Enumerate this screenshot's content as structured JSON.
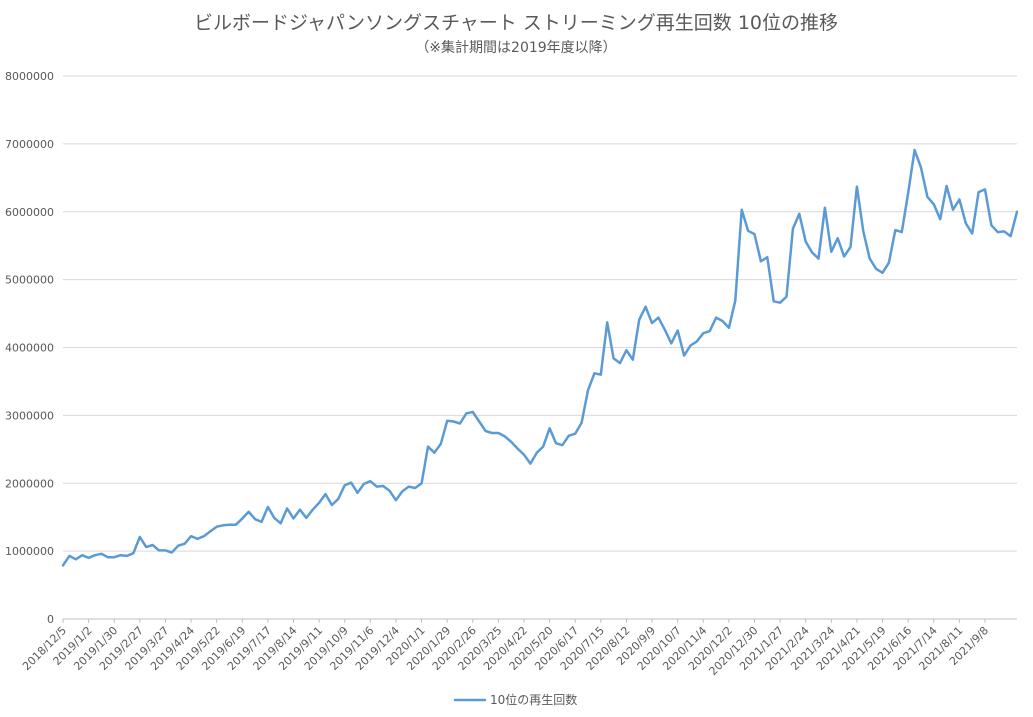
{
  "chart_data": {
    "type": "line",
    "title": "ビルボードジャパンソングスチャート ストリーミング再生回数 10位の推移",
    "subtitle": "（※集計期間は2019年度以降）",
    "xlabel": "",
    "ylabel": "",
    "ylim": [
      0,
      8000000
    ],
    "yticks": [
      "0",
      "1000000",
      "2000000",
      "3000000",
      "4000000",
      "5000000",
      "6000000",
      "7000000",
      "8000000"
    ],
    "grid": true,
    "legend_position": "bottom",
    "series_color": "#5b9bd5",
    "x_tick_labels": [
      "2018/12/5",
      "2019/1/2",
      "2019/1/30",
      "2019/2/27",
      "2019/3/27",
      "2019/4/24",
      "2019/5/22",
      "2019/6/19",
      "2019/7/17",
      "2019/8/14",
      "2019/9/11",
      "2019/10/9",
      "2019/11/6",
      "2019/12/4",
      "2020/1/1",
      "2020/1/29",
      "2020/2/26",
      "2020/3/25",
      "2020/4/22",
      "2020/5/20",
      "2020/6/17",
      "2020/7/15",
      "2020/8/12",
      "2020/9/9",
      "2020/10/7",
      "2020/11/4",
      "2020/12/2",
      "2020/12/30",
      "2021/1/27",
      "2021/2/24",
      "2021/3/24",
      "2021/4/21",
      "2021/5/19",
      "2021/6/16",
      "2021/7/14",
      "2021/8/11",
      "2021/9/8"
    ],
    "series": [
      {
        "name": "10位の再生回数",
        "values": [
          790000,
          930000,
          880000,
          940000,
          900000,
          940000,
          960000,
          910000,
          910000,
          940000,
          930000,
          970000,
          1210000,
          1060000,
          1090000,
          1010000,
          1010000,
          980000,
          1080000,
          1110000,
          1220000,
          1180000,
          1220000,
          1290000,
          1360000,
          1380000,
          1390000,
          1390000,
          1480000,
          1580000,
          1470000,
          1430000,
          1650000,
          1490000,
          1410000,
          1630000,
          1480000,
          1610000,
          1490000,
          1610000,
          1710000,
          1840000,
          1680000,
          1770000,
          1970000,
          2010000,
          1860000,
          1990000,
          2030000,
          1950000,
          1960000,
          1890000,
          1750000,
          1880000,
          1950000,
          1930000,
          2000000,
          2540000,
          2450000,
          2580000,
          2920000,
          2910000,
          2880000,
          3030000,
          3050000,
          2910000,
          2770000,
          2740000,
          2740000,
          2690000,
          2610000,
          2510000,
          2420000,
          2290000,
          2450000,
          2540000,
          2810000,
          2590000,
          2560000,
          2700000,
          2730000,
          2890000,
          3370000,
          3620000,
          3600000,
          4370000,
          3840000,
          3770000,
          3960000,
          3820000,
          4410000,
          4600000,
          4360000,
          4440000,
          4260000,
          4060000,
          4250000,
          3880000,
          4030000,
          4090000,
          4210000,
          4240000,
          4440000,
          4390000,
          4290000,
          4690000,
          6030000,
          5720000,
          5670000,
          5270000,
          5330000,
          4680000,
          4660000,
          4750000,
          5750000,
          5970000,
          5560000,
          5400000,
          5310000,
          6060000,
          5410000,
          5610000,
          5340000,
          5480000,
          6370000,
          5710000,
          5310000,
          5160000,
          5100000,
          5250000,
          5730000,
          5700000,
          6280000,
          6910000,
          6650000,
          6220000,
          6110000,
          5890000,
          6380000,
          6030000,
          6180000,
          5830000,
          5680000,
          6290000,
          6330000,
          5800000,
          5700000,
          5710000,
          5640000,
          6000000
        ]
      }
    ]
  }
}
